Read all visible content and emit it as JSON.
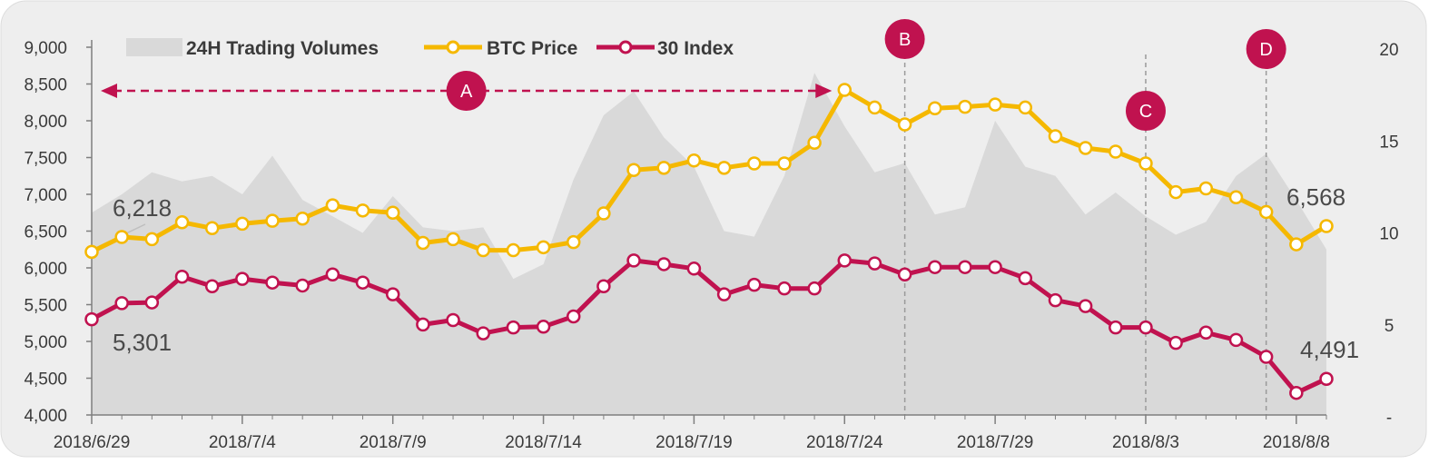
{
  "chart_data": {
    "type": "line",
    "x": [
      "2018/6/29",
      "2018/6/30",
      "2018/7/1",
      "2018/7/2",
      "2018/7/3",
      "2018/7/4",
      "2018/7/5",
      "2018/7/6",
      "2018/7/7",
      "2018/7/8",
      "2018/7/9",
      "2018/7/10",
      "2018/7/11",
      "2018/7/12",
      "2018/7/13",
      "2018/7/14",
      "2018/7/15",
      "2018/7/16",
      "2018/7/17",
      "2018/7/18",
      "2018/7/19",
      "2018/7/20",
      "2018/7/21",
      "2018/7/22",
      "2018/7/23",
      "2018/7/24",
      "2018/7/25",
      "2018/7/26",
      "2018/7/27",
      "2018/7/28",
      "2018/7/29",
      "2018/7/30",
      "2018/7/31",
      "2018/8/1",
      "2018/8/2",
      "2018/8/3",
      "2018/8/4",
      "2018/8/5",
      "2018/8/6",
      "2018/8/7",
      "2018/8/8",
      "2018/8/9"
    ],
    "x_tick_labels": [
      "2018/6/29",
      "2018/7/4",
      "2018/7/9",
      "2018/7/14",
      "2018/7/19",
      "2018/7/24",
      "2018/7/29",
      "2018/8/3",
      "2018/8/8"
    ],
    "y_left_ticks": [
      "4,000",
      "4,500",
      "5,000",
      "5,500",
      "6,000",
      "6,500",
      "7,000",
      "7,500",
      "8,000",
      "8,500",
      "9,000"
    ],
    "y_right_ticks": [
      "-",
      "5",
      "10",
      "15",
      "20"
    ],
    "ylim_left": [
      4000,
      9000
    ],
    "ylim_right": [
      0,
      20
    ],
    "series": [
      {
        "name": "24H Trading Volumes",
        "type": "area",
        "axis": "right",
        "color": "#d9d9d9",
        "values": [
          11,
          12,
          13.2,
          12.7,
          13,
          12,
          14.1,
          11.7,
          10.8,
          9.9,
          11.9,
          10.2,
          10,
          10.2,
          7.4,
          8.2,
          12.8,
          16.3,
          17.6,
          15.1,
          13.5,
          10,
          9.7,
          13,
          18.6,
          15.7,
          13.2,
          13.7,
          10.9,
          11.3,
          16,
          13.5,
          13,
          10.9,
          12.1,
          10.8,
          9.8,
          10.5,
          13,
          14.2,
          11.7,
          9
        ]
      },
      {
        "name": "BTC Price",
        "type": "line",
        "axis": "left",
        "color": "#f5b800",
        "values": [
          6218,
          6420,
          6390,
          6620,
          6540,
          6600,
          6640,
          6670,
          6850,
          6780,
          6750,
          6340,
          6390,
          6240,
          6240,
          6280,
          6350,
          6740,
          7330,
          7360,
          7460,
          7360,
          7420,
          7420,
          7700,
          8420,
          8180,
          7950,
          8170,
          8190,
          8220,
          8180,
          7790,
          7630,
          7580,
          7420,
          7030,
          7080,
          6960,
          6760,
          6320,
          6568
        ]
      },
      {
        "name": "30 Index",
        "type": "line",
        "axis": "left",
        "color": "#c0124f",
        "values": [
          5301,
          5520,
          5530,
          5880,
          5750,
          5850,
          5800,
          5760,
          5910,
          5800,
          5640,
          5230,
          5290,
          5110,
          5190,
          5200,
          5340,
          5750,
          6100,
          6050,
          5990,
          5640,
          5770,
          5720,
          5720,
          6100,
          6060,
          5910,
          6010,
          6010,
          6010,
          5860,
          5560,
          5480,
          5190,
          5190,
          4980,
          5120,
          5020,
          4790,
          4300,
          4491
        ]
      }
    ],
    "data_labels": {
      "btc_start": "6,218",
      "btc_end": "6,568",
      "index_start": "5,301",
      "index_end": "4,491"
    },
    "annotations": [
      {
        "label": "A",
        "type": "range",
        "from": "2018/6/29",
        "to": "2018/7/24"
      },
      {
        "label": "B",
        "type": "vline",
        "x": "2018/7/26"
      },
      {
        "label": "C",
        "type": "vline",
        "x": "2018/8/3"
      },
      {
        "label": "D",
        "type": "vline",
        "x": "2018/8/7"
      }
    ],
    "legend_position": "top-left",
    "grid": false,
    "marker_color": "#c0124f",
    "background": "#eeeeee"
  }
}
